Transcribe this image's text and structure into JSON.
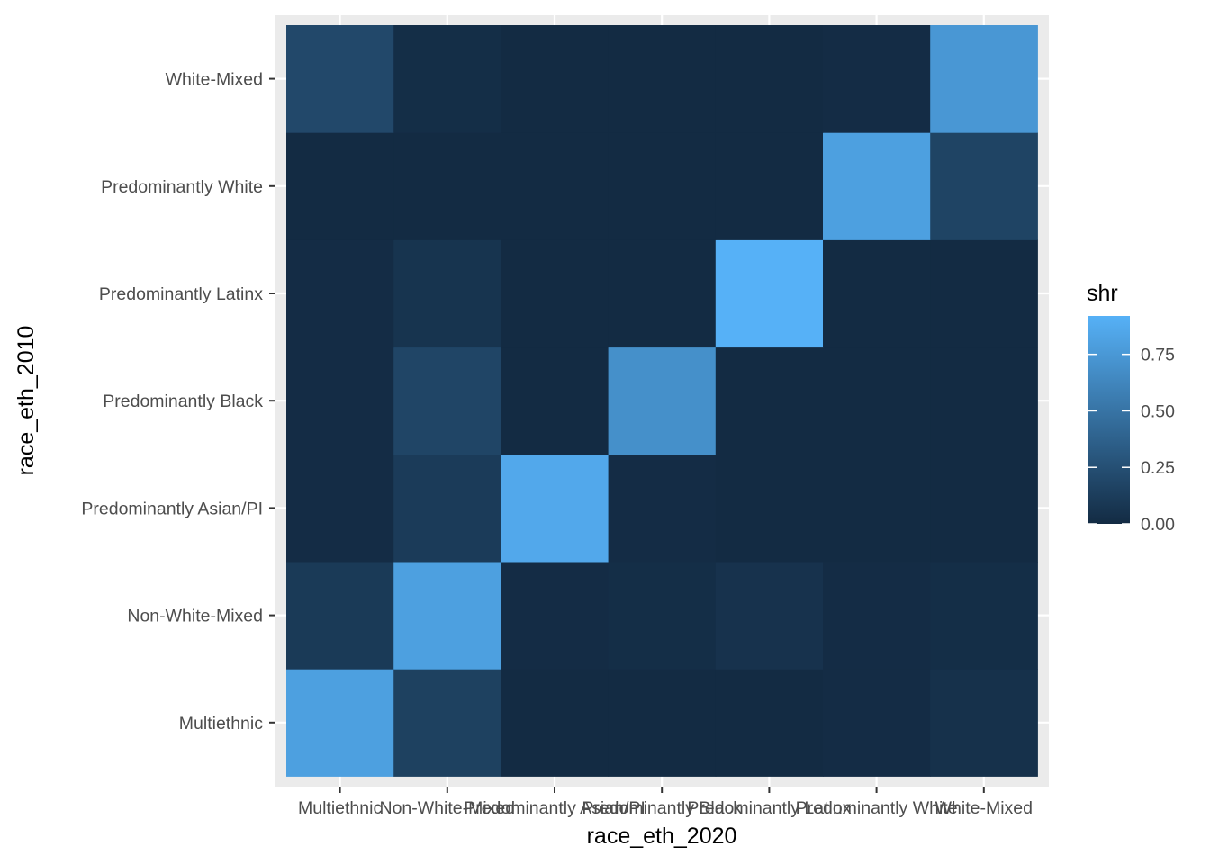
{
  "chart_data": {
    "type": "heatmap",
    "x_title": "race_eth_2020",
    "y_title": "race_eth_2010",
    "x_categories": [
      "Multiethnic",
      "Non-White-Mixed",
      "Predominantly Asian/PI",
      "Predominantly Black",
      "Predominantly Latinx",
      "Predominantly White",
      "White-Mixed"
    ],
    "y_categories": [
      "Multiethnic",
      "Non-White-Mixed",
      "Predominantly Asian/PI",
      "Predominantly Black",
      "Predominantly Latinx",
      "Predominantly White",
      "White-Mixed"
    ],
    "values": [
      [
        0.8,
        0.15,
        0.0,
        0.0,
        0.0,
        0.01,
        0.04
      ],
      [
        0.1,
        0.8,
        0.01,
        0.02,
        0.05,
        0.01,
        0.02
      ],
      [
        0.01,
        0.11,
        0.86,
        0.01,
        0.0,
        0.0,
        0.0
      ],
      [
        0.01,
        0.18,
        0.0,
        0.69,
        0.0,
        0.0,
        0.0
      ],
      [
        0.01,
        0.06,
        0.0,
        0.0,
        0.92,
        0.0,
        0.0
      ],
      [
        0.0,
        0.0,
        0.0,
        0.0,
        0.0,
        0.8,
        0.17
      ],
      [
        0.2,
        0.02,
        0.0,
        0.0,
        0.0,
        0.01,
        0.74
      ]
    ],
    "legend": {
      "title": "shr",
      "ticks": [
        0.0,
        0.25,
        0.5,
        0.75
      ],
      "tick_labels": [
        "0.00",
        "0.25",
        "0.50",
        "0.75"
      ],
      "range": [
        0,
        0.92
      ],
      "low_color": "#132B43",
      "high_color": "#56B1F7"
    },
    "panel_background": "#EBEBEB",
    "grid_color": "#FFFFFF"
  }
}
